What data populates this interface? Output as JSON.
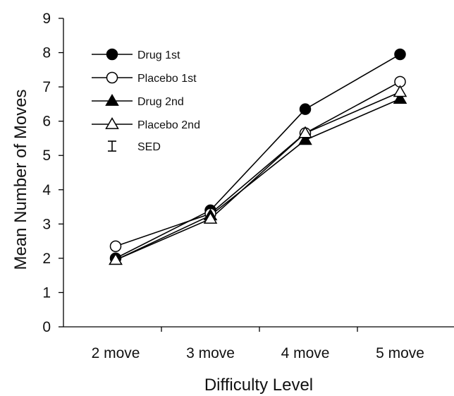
{
  "chart_data": {
    "type": "line",
    "title": "",
    "xlabel": "Difficulty Level",
    "ylabel": "Mean Number of Moves",
    "categories": [
      "2 move",
      "3 move",
      "4 move",
      "5 move"
    ],
    "ylim": [
      0,
      9
    ],
    "yticks": [
      0,
      1,
      2,
      3,
      4,
      5,
      6,
      7,
      8,
      9
    ],
    "grid": false,
    "legend_position": "top-left",
    "series": [
      {
        "name": "Drug 1st",
        "marker": "circle-filled",
        "values": [
          2.0,
          3.4,
          6.35,
          7.95
        ]
      },
      {
        "name": "Placebo 1st",
        "marker": "circle-open",
        "values": [
          2.35,
          3.3,
          5.65,
          7.15
        ]
      },
      {
        "name": "Drug 2nd",
        "marker": "triangle-filled",
        "values": [
          1.95,
          3.25,
          5.45,
          6.65
        ]
      },
      {
        "name": "Placebo 2nd",
        "marker": "triangle-open",
        "values": [
          1.95,
          3.15,
          5.65,
          6.85
        ]
      }
    ],
    "sed_label": "SED"
  }
}
